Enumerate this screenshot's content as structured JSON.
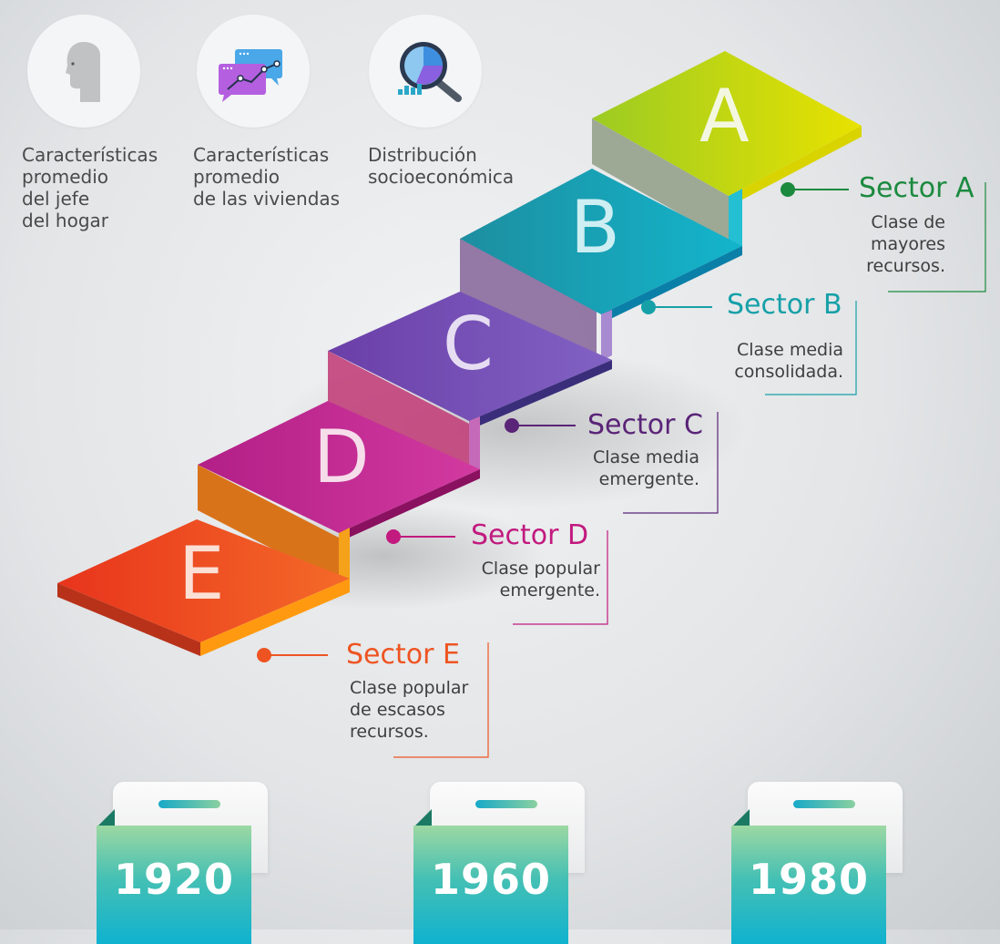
{
  "icons": [
    {
      "name": "head-profile-icon",
      "label": "Características\npromedio\ndel jefe\ndel hogar"
    },
    {
      "name": "chat-chart-icon",
      "label": "Características\npromedio\nde las viviendas"
    },
    {
      "name": "magnifier-pie-icon",
      "label": "Distribución\nsocioeconómica"
    }
  ],
  "steps": [
    "A",
    "B",
    "C",
    "D",
    "E"
  ],
  "sectors": [
    {
      "title": "Sector A",
      "desc": "Clase de\nmayores\nrecursos.",
      "color": "#1b8a3e"
    },
    {
      "title": "Sector B",
      "desc": "Clase media\nconsolidada.",
      "color": "#16a0a8"
    },
    {
      "title": "Sector C",
      "desc": "Clase media\nemergente.",
      "color": "#5a2478"
    },
    {
      "title": "Sector D",
      "desc": "Clase popular\nemergente.",
      "color": "#c21a7f"
    },
    {
      "title": "Sector E",
      "desc": "Clase popular\nde escasos\nrecursos.",
      "color": "#ee5422"
    }
  ],
  "years": [
    "1920",
    "1960",
    "1980"
  ]
}
